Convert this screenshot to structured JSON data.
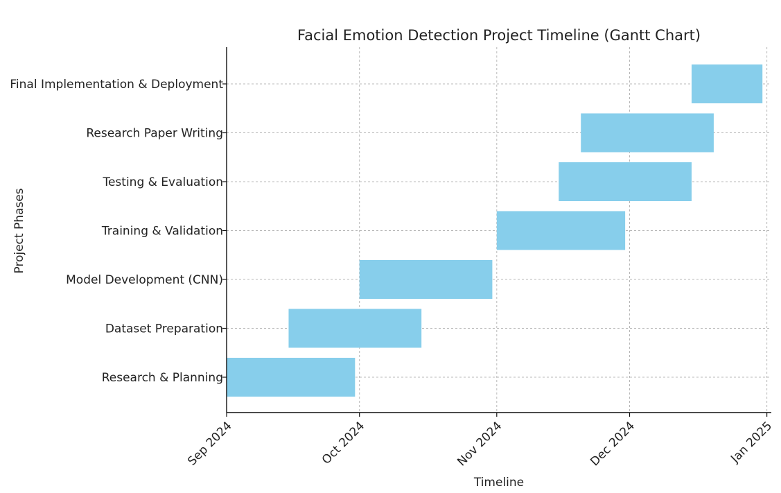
{
  "chart_data": {
    "type": "gantt",
    "title": "Facial Emotion Detection Project Timeline (Gantt Chart)",
    "xlabel": "Timeline",
    "ylabel": "Project Phases",
    "x_ticks": [
      "Sep 2024",
      "Oct 2024",
      "Nov 2024",
      "Dec 2024",
      "Jan 2025"
    ],
    "x_tick_dates": [
      "2024-09-01",
      "2024-10-01",
      "2024-11-01",
      "2024-12-01",
      "2025-01-01"
    ],
    "xlim": [
      "2024-09-01",
      "2025-01-02"
    ],
    "grid": true,
    "bar_color": "#87CEEB",
    "tasks": [
      {
        "name": "Research & Planning",
        "start": "2024-09-01",
        "end": "2024-09-30"
      },
      {
        "name": "Dataset Preparation",
        "start": "2024-09-15",
        "end": "2024-10-15"
      },
      {
        "name": "Model Development (CNN)",
        "start": "2024-10-01",
        "end": "2024-10-31"
      },
      {
        "name": "Training & Validation",
        "start": "2024-11-01",
        "end": "2024-11-30"
      },
      {
        "name": "Testing & Evaluation",
        "start": "2024-11-15",
        "end": "2024-12-15"
      },
      {
        "name": "Research Paper Writing",
        "start": "2024-11-20",
        "end": "2024-12-20"
      },
      {
        "name": "Final Implementation & Deployment",
        "start": "2024-12-15",
        "end": "2024-12-31"
      }
    ]
  }
}
